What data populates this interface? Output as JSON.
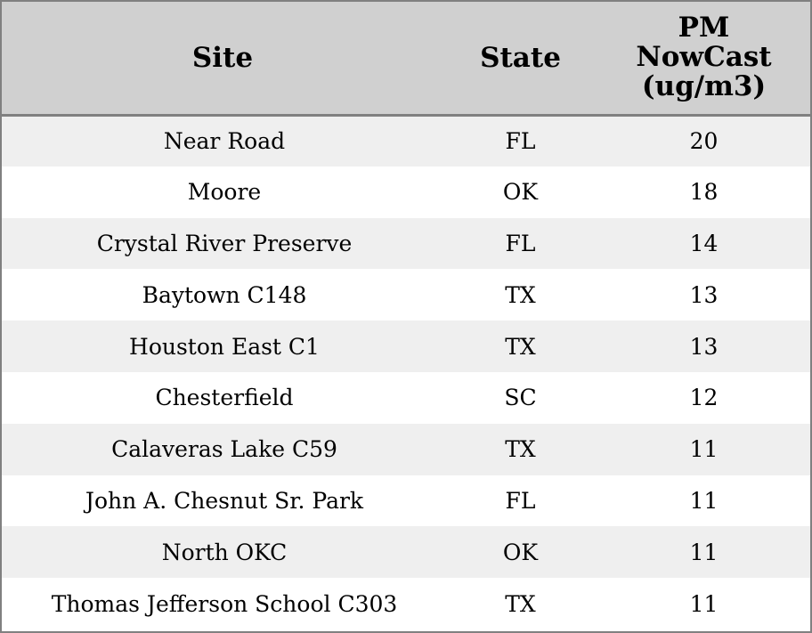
{
  "chart_data": {
    "type": "table",
    "columns": [
      "Site",
      "State",
      "PM NowCast (ug/m3)"
    ],
    "header_lines": {
      "site": "Site",
      "state": "State",
      "pm": [
        "PM",
        "NowCast",
        "(ug/m3)"
      ]
    },
    "rows": [
      {
        "site": "Near Road",
        "state": "FL",
        "pm": "20"
      },
      {
        "site": "Moore",
        "state": "OK",
        "pm": "18"
      },
      {
        "site": "Crystal River Preserve",
        "state": "FL",
        "pm": "14"
      },
      {
        "site": "Baytown C148",
        "state": "TX",
        "pm": "13"
      },
      {
        "site": "Houston East C1",
        "state": "TX",
        "pm": "13"
      },
      {
        "site": "Chesterfield",
        "state": "SC",
        "pm": "12"
      },
      {
        "site": "Calaveras Lake C59",
        "state": "TX",
        "pm": "11"
      },
      {
        "site": "John A. Chesnut Sr. Park",
        "state": "FL",
        "pm": "11"
      },
      {
        "site": "North OKC",
        "state": "OK",
        "pm": "11"
      },
      {
        "site": "Thomas Jefferson School C303",
        "state": "TX",
        "pm": "11"
      }
    ],
    "colors": {
      "header_bg": "#d0d0d0",
      "row_alt_bg": "#efefef",
      "row_bg": "#ffffff",
      "border": "#808080"
    }
  }
}
